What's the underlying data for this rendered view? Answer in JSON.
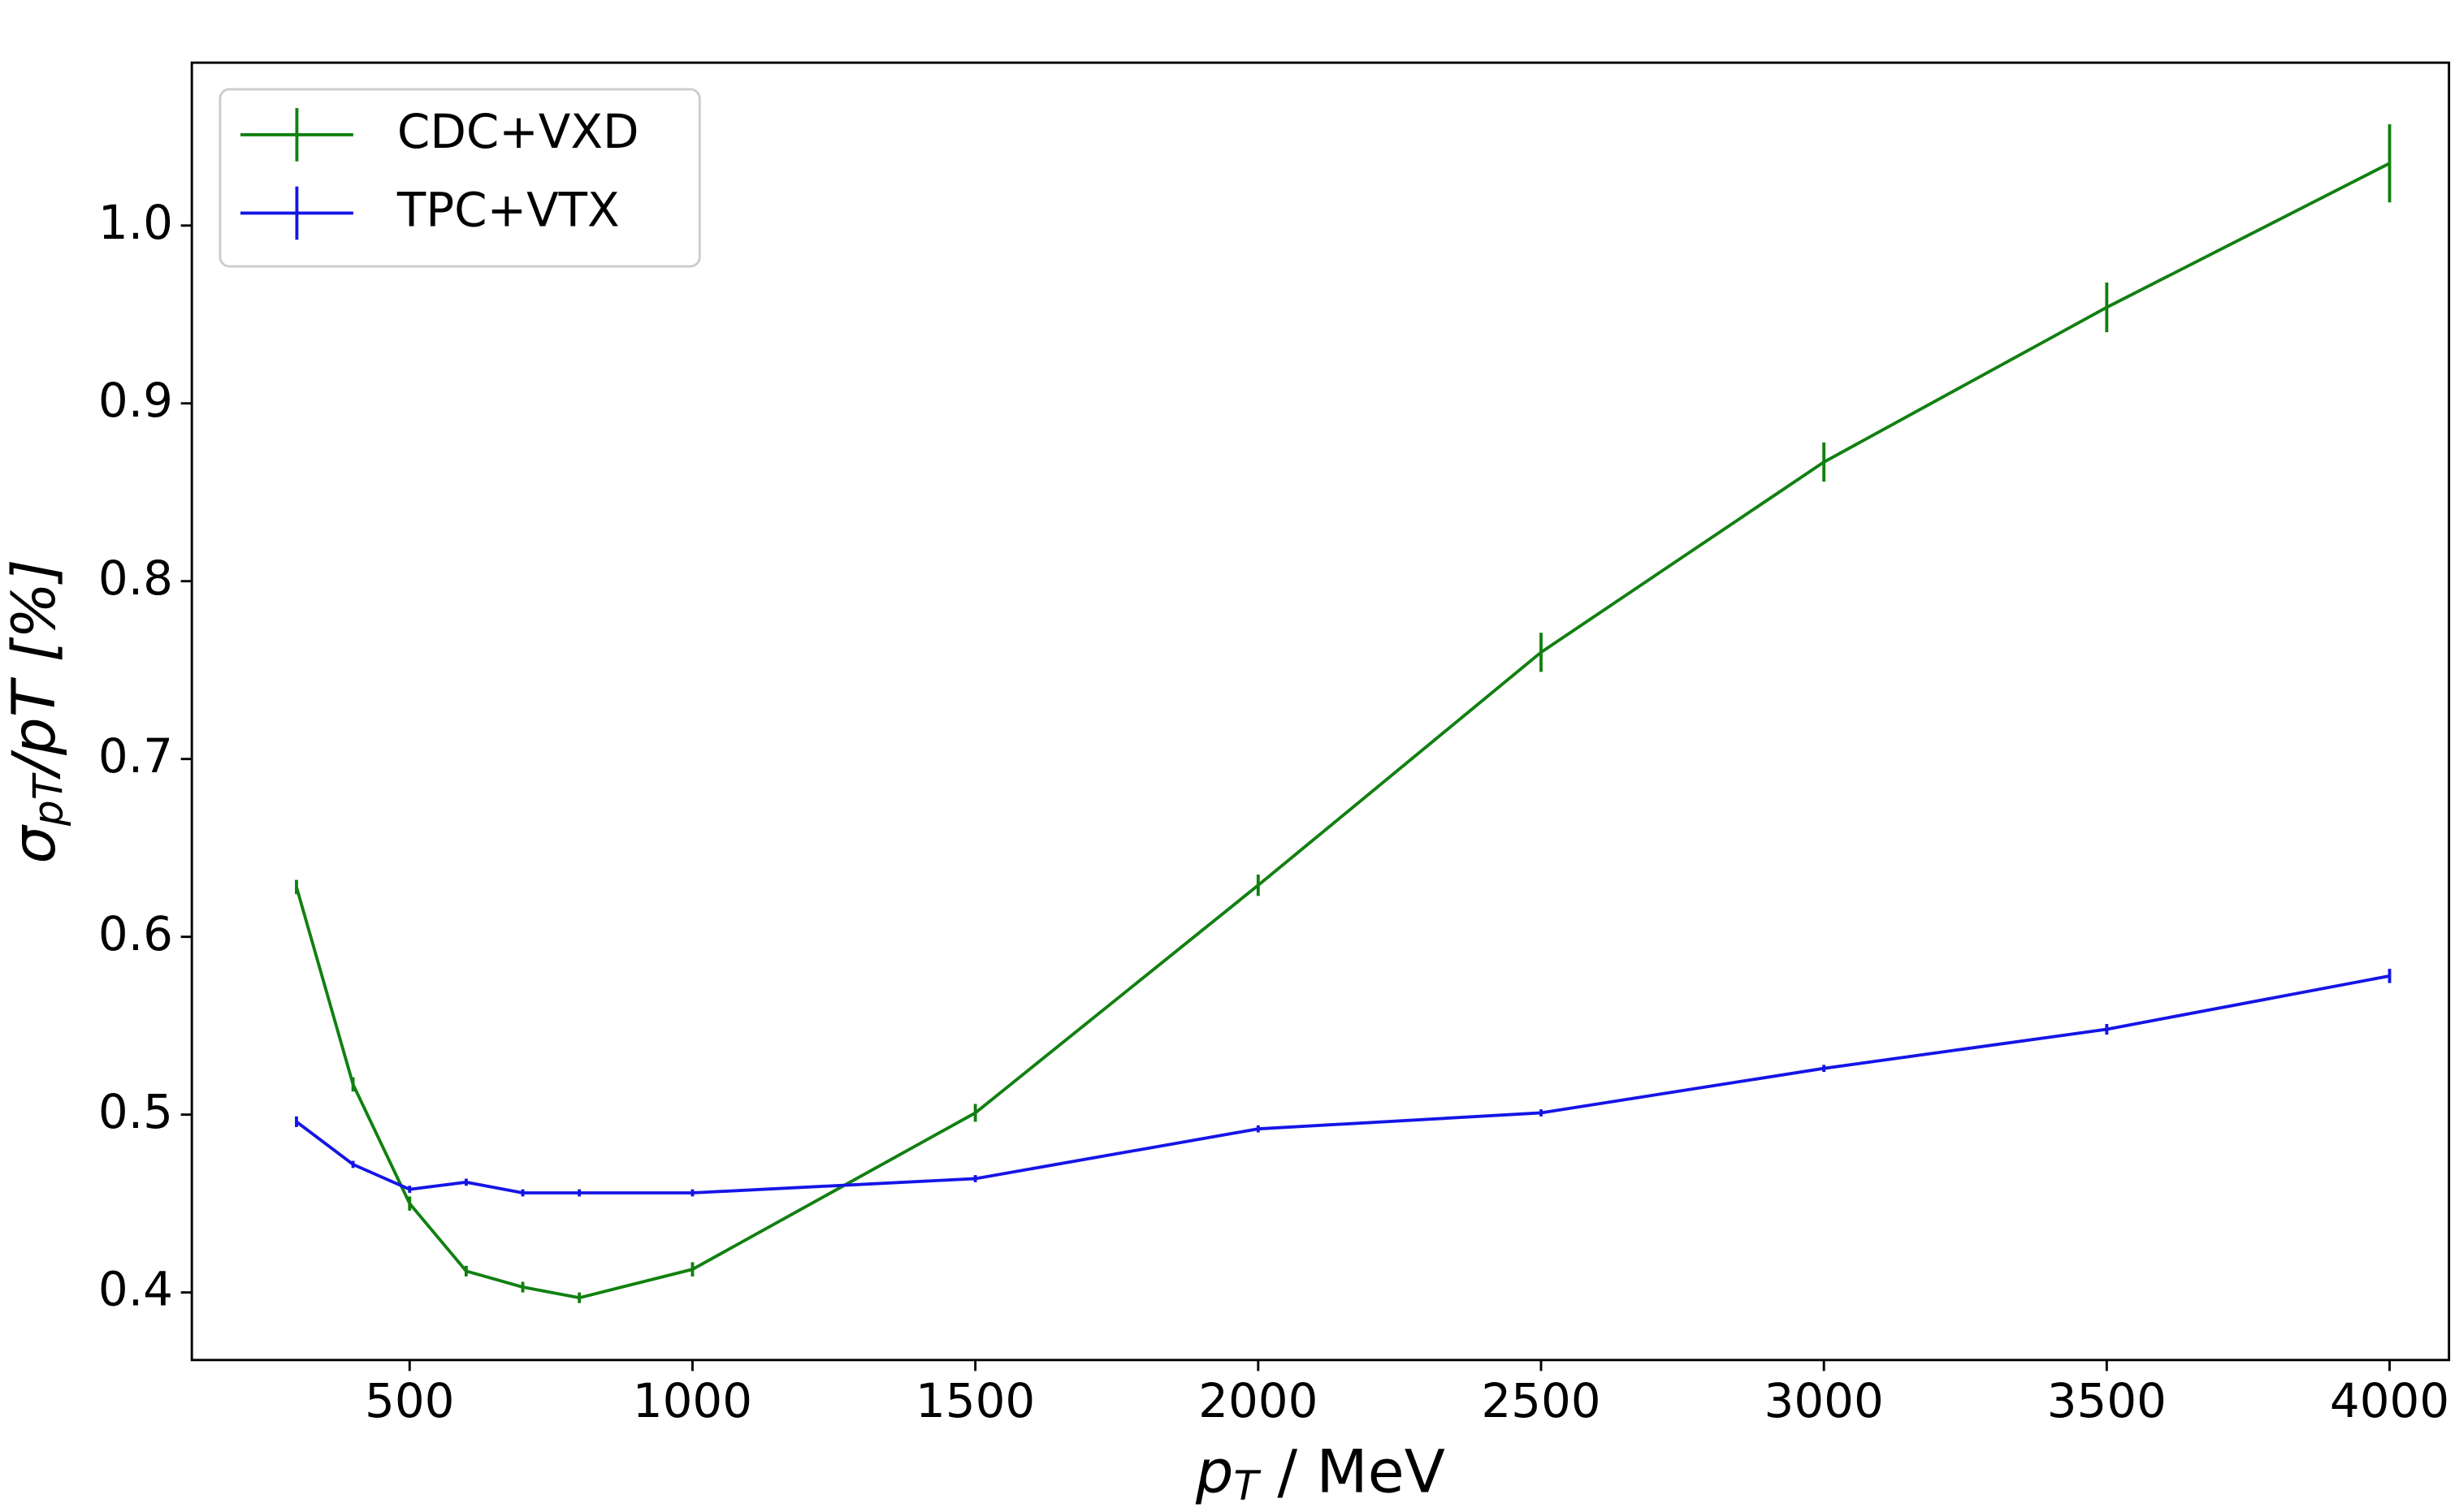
{
  "chart_data": {
    "type": "line",
    "x_label": {
      "main": "p",
      "sub": "T",
      "rest": " / MeV"
    },
    "y_label": {
      "main": "σ",
      "sub": "pT",
      "rest": "/pT [%]"
    },
    "x": [
      300,
      400,
      500,
      600,
      700,
      800,
      1000,
      1500,
      2000,
      2500,
      3000,
      3500,
      4000
    ],
    "series": [
      {
        "name": "CDC+VXD",
        "color": "#118011",
        "values": [
          0.628,
          0.517,
          0.45,
          0.412,
          0.403,
          0.397,
          0.413,
          0.501,
          0.629,
          0.76,
          0.867,
          0.954,
          1.035
        ],
        "errors": [
          0.004,
          0.004,
          0.004,
          0.003,
          0.003,
          0.003,
          0.004,
          0.005,
          0.006,
          0.011,
          0.011,
          0.014,
          0.022
        ]
      },
      {
        "name": "TPC+VTX",
        "color": "#1515e6",
        "values": [
          0.496,
          0.472,
          0.458,
          0.462,
          0.456,
          0.456,
          0.456,
          0.464,
          0.492,
          0.501,
          0.526,
          0.548,
          0.578
        ],
        "errors": [
          0.003,
          0.002,
          0.002,
          0.002,
          0.002,
          0.002,
          0.002,
          0.002,
          0.002,
          0.002,
          0.002,
          0.003,
          0.004
        ]
      }
    ],
    "xlim": [
      115,
      4105
    ],
    "ylim": [
      0.362,
      1.0916
    ],
    "xticks": [
      500,
      1000,
      1500,
      2000,
      2500,
      3000,
      3500,
      4000
    ],
    "yticks": [
      0.4,
      0.5,
      0.6,
      0.7,
      0.8,
      0.9,
      {
        "value": 1.0,
        "label": "1.0"
      }
    ],
    "legend": "upper left"
  }
}
